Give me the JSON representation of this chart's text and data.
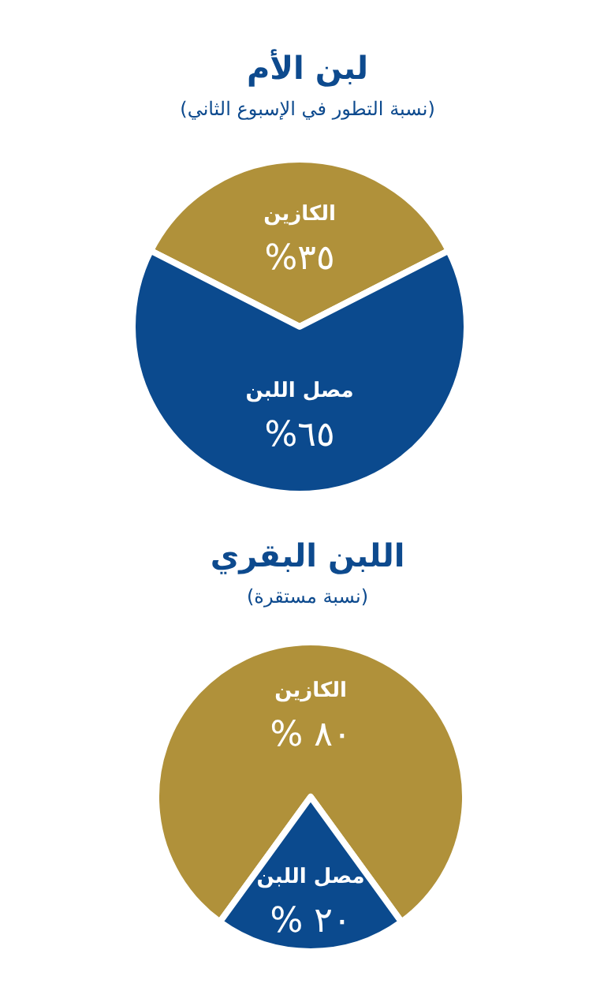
{
  "chart_data": [
    {
      "type": "pie",
      "title": "لبن الأم",
      "subtitle": "(نسبة التطور في الإسبوع الثاني)",
      "categories": [
        "الكازين",
        "مصل اللبن"
      ],
      "values": [
        35,
        65
      ],
      "colors": [
        "#b0913a",
        "#0b4a8e"
      ],
      "value_labels": [
        "%٣٥",
        "%٦٥"
      ]
    },
    {
      "type": "pie",
      "title": "اللبن البقري",
      "subtitle": "(نسبة مستقرة)",
      "categories": [
        "الكازين",
        "مصل اللبن"
      ],
      "values": [
        80,
        20
      ],
      "colors": [
        "#b0913a",
        "#0b4a8e"
      ],
      "value_labels": [
        "% ٨٠",
        "% ٢٠"
      ]
    }
  ]
}
